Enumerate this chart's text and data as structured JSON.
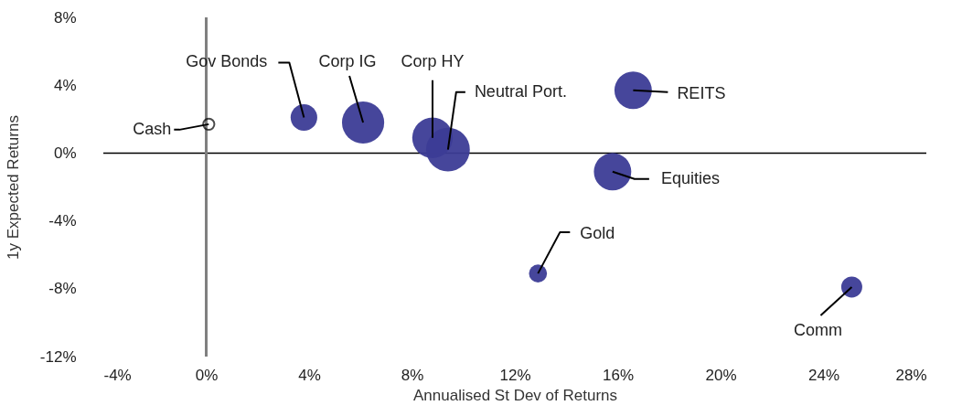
{
  "chart_data": {
    "type": "bubble",
    "xlabel": "Annualised St Dev of Returns",
    "ylabel": "1y Expected Returns",
    "series": [
      {
        "type": "scatter",
        "color": "#000000",
        "x": [
          0.1
        ],
        "values": [
          1.7
        ]
      },
      {
        "color": "#3c3c96",
        "x": [
          3.8,
          6.1,
          8.8,
          9.4,
          16.6,
          15.8,
          12.9,
          25.1
        ],
        "values": [
          2.1,
          1.8,
          0.9,
          0.2,
          3.7,
          -1.1,
          -7.1,
          -7.9
        ],
        "sizes": [
          0.37,
          0.93,
          0.86,
          1,
          0.73,
          0.73,
          0.17,
          0.23
        ]
      }
    ],
    "xlim": [
      -4,
      28
    ],
    "xticks": [
      {
        "value": -4,
        "label": "-4%"
      },
      {
        "value": 0,
        "label": "0%"
      },
      {
        "value": 4,
        "label": "4%"
      },
      {
        "value": 8,
        "label": "8%"
      },
      {
        "value": 12,
        "label": "12%"
      },
      {
        "value": 16,
        "label": "16%"
      },
      {
        "value": 20,
        "label": "20%"
      },
      {
        "value": 24,
        "label": "24%"
      },
      {
        "value": 28,
        "label": "28%"
      }
    ],
    "ylim": [
      -12,
      8
    ],
    "yticks": [
      {
        "value": -12,
        "label": "-12%"
      },
      {
        "value": -8,
        "label": "-8%"
      },
      {
        "value": -4,
        "label": "-4%"
      },
      {
        "value": 0,
        "label": "0%"
      },
      {
        "value": 4,
        "label": "4%"
      },
      {
        "value": 8,
        "label": "8%"
      }
    ],
    "ref_lines": [
      {
        "axis": "y",
        "value": 0,
        "color": "#000000"
      },
      {
        "axis": "x",
        "value": 0,
        "color": "#808080"
      }
    ],
    "annotations": [
      {
        "text": "Cash",
        "x": 0.1,
        "y": 1.7
      },
      {
        "text": "Gov Bonds",
        "x": 3.8,
        "y": 2.1
      },
      {
        "text": "Corp IG",
        "x": 6.1,
        "y": 1.8
      },
      {
        "text": "Corp HY",
        "x": 8.8,
        "y": 0.9
      },
      {
        "text": "Neutral Port.",
        "x": 9.4,
        "y": 0.2
      },
      {
        "text": "REITS",
        "x": 16.6,
        "y": 3.7
      },
      {
        "text": "Equities",
        "x": 15.8,
        "y": -1.1
      },
      {
        "text": "Gold",
        "x": 12.9,
        "y": -7.1
      },
      {
        "text": "Comm",
        "x": 25.1,
        "y": -7.9
      }
    ],
    "grid": false
  }
}
